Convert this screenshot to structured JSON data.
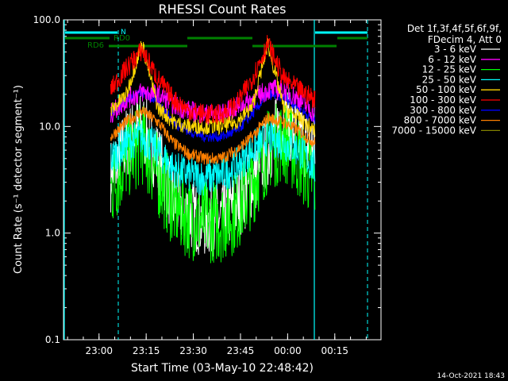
{
  "chart_data": {
    "type": "line",
    "title": "RHESSI Count Rates",
    "xlabel": "Start Time (03-May-10 22:48:42)",
    "ylabel": "Count Rate (s⁻¹ detector segment⁻¹)",
    "yscale": "log",
    "ylim": [
      0.1,
      100
    ],
    "xlim_minutes_after_start": [
      0,
      101
    ],
    "yticks": [
      "0.1",
      "1.0",
      "10.0",
      "100.0"
    ],
    "xticks": [
      {
        "label": "23:00",
        "minutes": 11.3
      },
      {
        "label": "23:15",
        "minutes": 26.3
      },
      {
        "label": "23:30",
        "minutes": 41.3
      },
      {
        "label": "23:45",
        "minutes": 56.3
      },
      {
        "label": "00:00",
        "minutes": 71.3
      },
      {
        "label": "00:15",
        "minutes": 86.3
      }
    ],
    "legend_placement": "right",
    "legend_header": [
      "Det 1f,3f,4f,5f,6f,9f,",
      "FDecim 4, Att 0"
    ],
    "series": [
      {
        "name": "3 - 6 keV",
        "color": "#ffffff",
        "x": [
          15,
          20,
          25,
          30,
          35,
          40,
          45,
          50,
          55,
          60,
          65,
          70,
          75,
          80
        ],
        "values": [
          3.5,
          7,
          10,
          5,
          2,
          1.5,
          1.3,
          1.4,
          1.8,
          3,
          6,
          12,
          8,
          6
        ],
        "noise": 0.7
      },
      {
        "name": "6 - 12 keV",
        "color": "#ff00ff",
        "x": [
          15,
          20,
          25,
          30,
          35,
          40,
          45,
          50,
          55,
          60,
          65,
          70,
          75,
          80
        ],
        "values": [
          13,
          18,
          21,
          20,
          16,
          14,
          13,
          13,
          15,
          18,
          22,
          22,
          18,
          13
        ],
        "noise": 0.2
      },
      {
        "name": "12 - 25 keV",
        "color": "#00ff00",
        "x": [
          15,
          20,
          25,
          30,
          35,
          40,
          45,
          50,
          55,
          60,
          65,
          70,
          75,
          80
        ],
        "values": [
          2.5,
          5,
          7,
          3.5,
          1.8,
          1.4,
          1.3,
          1.3,
          1.6,
          2.8,
          6,
          7.5,
          5,
          3
        ],
        "noise": 0.8
      },
      {
        "name": "25 - 50 keV",
        "color": "#00ffff",
        "x": [
          15,
          20,
          25,
          30,
          35,
          40,
          45,
          50,
          55,
          60,
          65,
          70,
          75,
          80
        ],
        "values": [
          5,
          7,
          8,
          6,
          4,
          3.5,
          3.3,
          3.5,
          4.2,
          6,
          8,
          7,
          6,
          4
        ],
        "noise": 0.35
      },
      {
        "name": "50 - 100 keV",
        "color": "#ffd700",
        "x": [
          15,
          20,
          25,
          30,
          35,
          40,
          45,
          50,
          55,
          60,
          65,
          70,
          75,
          80
        ],
        "values": [
          14,
          20,
          60,
          15,
          11,
          10,
          10,
          10,
          11,
          15,
          60,
          15,
          12,
          9
        ],
        "noise": 0.15
      },
      {
        "name": "100 - 300 keV",
        "color": "#ff0000",
        "x": [
          15,
          20,
          25,
          30,
          35,
          40,
          45,
          50,
          55,
          60,
          65,
          70,
          75,
          80
        ],
        "values": [
          22,
          35,
          52,
          28,
          18,
          14,
          13,
          13,
          16,
          28,
          60,
          28,
          22,
          18
        ],
        "noise": 0.2
      },
      {
        "name": "300 - 800 keV",
        "color": "#0000ff",
        "x": [
          15,
          20,
          25,
          30,
          35,
          40,
          45,
          50,
          55,
          60,
          65,
          70,
          75,
          80
        ],
        "values": [
          13,
          18,
          21,
          17,
          11,
          9,
          8,
          8,
          9,
          13,
          20,
          19,
          15,
          11
        ],
        "noise": 0.1
      },
      {
        "name": "800 - 7000 keV",
        "color": "#ff8000",
        "x": [
          15,
          20,
          25,
          30,
          35,
          40,
          45,
          50,
          55,
          60,
          65,
          70,
          75,
          80
        ],
        "values": [
          8,
          11,
          14,
          11,
          7,
          5.5,
          5,
          5,
          6,
          8,
          12,
          11,
          9,
          7
        ],
        "noise": 0.12
      },
      {
        "name": "7000 - 15000 keV",
        "color": "#808000",
        "x": [],
        "values": [],
        "noise": 0
      }
    ],
    "annotations": [
      {
        "label": "N",
        "color": "#00ffff"
      },
      {
        "label": "RD0",
        "color": "#008000"
      },
      {
        "label": "RD6",
        "color": "#008000"
      }
    ],
    "timestamp": "14-Oct-2021 18:43"
  }
}
